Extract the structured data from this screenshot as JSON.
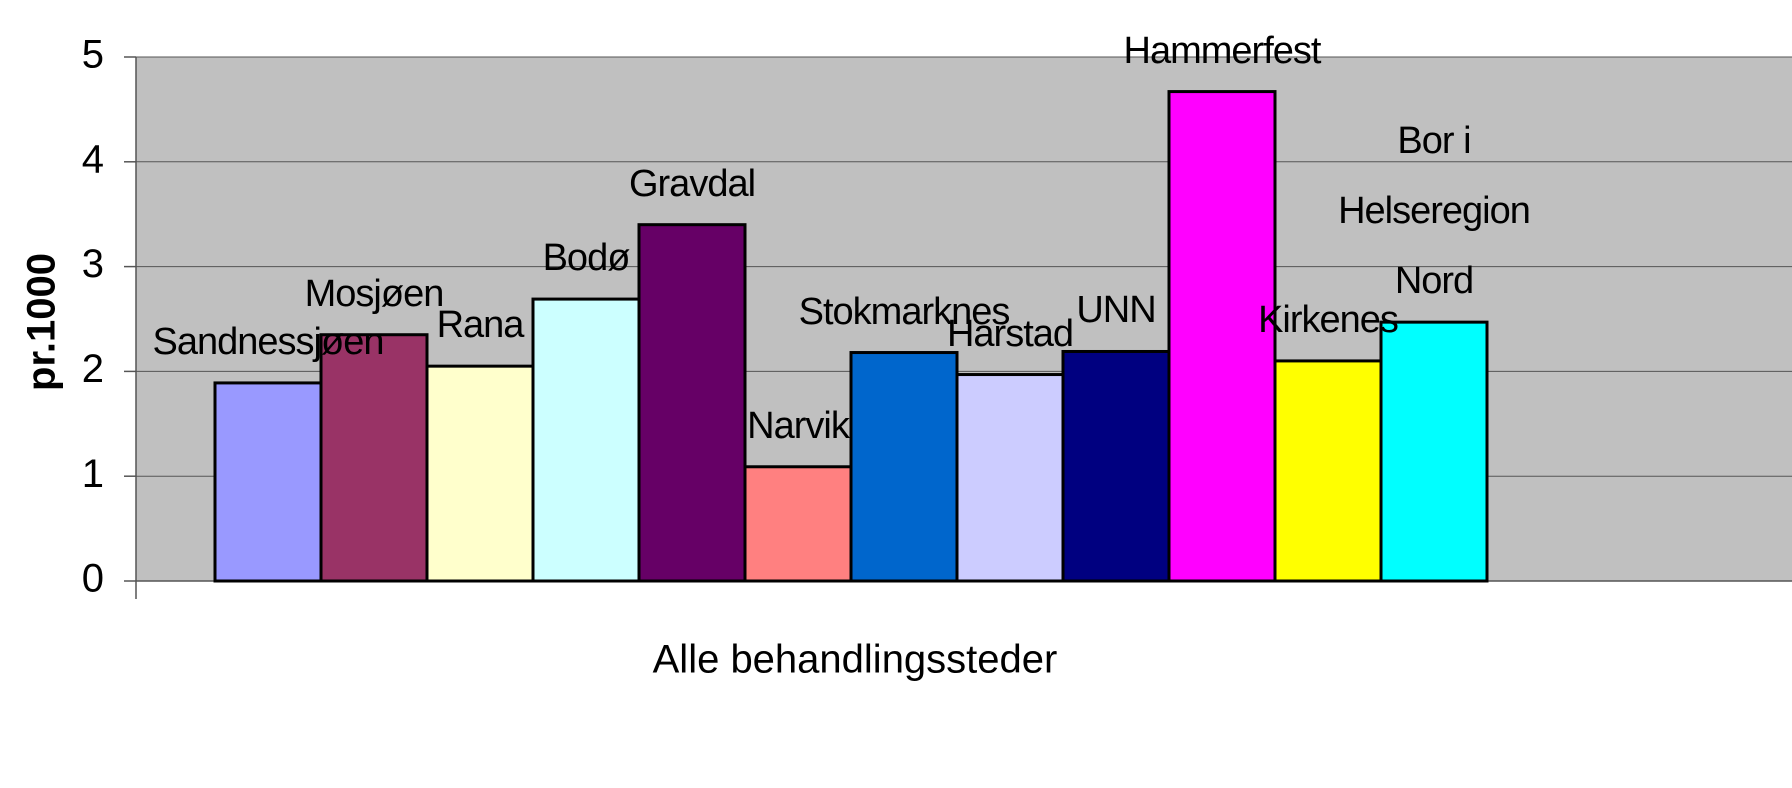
{
  "chart_data": {
    "type": "bar",
    "categories": [
      "Alle behandlingssteder"
    ],
    "y_label": "pr.1000",
    "ylim": [
      0,
      5
    ],
    "yticks": [
      0,
      1,
      2,
      3,
      4,
      5
    ],
    "grid": true,
    "series": [
      {
        "name": "Sandnessjøen",
        "color": "#9999ff",
        "values": [
          1.89
        ]
      },
      {
        "name": "Mosjøen",
        "color": "#993366",
        "values": [
          2.35
        ]
      },
      {
        "name": "Rana",
        "color": "#ffffcc",
        "values": [
          2.05
        ]
      },
      {
        "name": "Bodø",
        "color": "#ccffff",
        "values": [
          2.69
        ]
      },
      {
        "name": "Gravdal",
        "color": "#660066",
        "values": [
          3.4
        ]
      },
      {
        "name": "Narvik",
        "color": "#ff8080",
        "values": [
          1.09
        ]
      },
      {
        "name": "Stokmarknes",
        "color": "#0066cc",
        "values": [
          2.18
        ]
      },
      {
        "name": "Harstad",
        "color": "#ccccff",
        "values": [
          1.97
        ]
      },
      {
        "name": "UNN",
        "color": "#000080",
        "values": [
          2.19
        ]
      },
      {
        "name": "Hammerfest",
        "color": "#ff00ff",
        "values": [
          4.67
        ]
      },
      {
        "name": "Kirkenes",
        "color": "#ffff00",
        "values": [
          2.1
        ]
      },
      {
        "name": "Bor i Helseregion Nord",
        "color": "#00ffff",
        "values": [
          2.47
        ]
      }
    ]
  }
}
